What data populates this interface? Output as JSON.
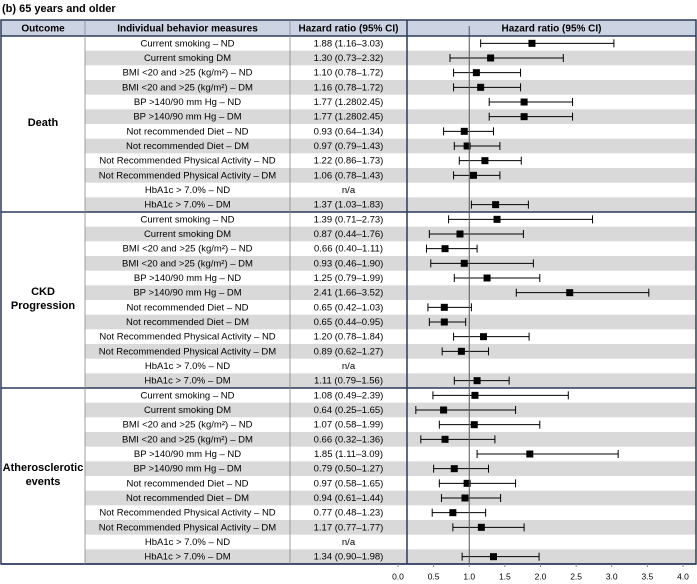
{
  "chart_data": {
    "type": "forest",
    "title": "(b) 65 years and older",
    "columns": [
      "Outcome",
      "Individual behavior measures",
      "Hazard ratio (95% CI)",
      "Hazard ratio (95% CI)"
    ],
    "xlim": [
      0,
      4
    ],
    "xticks": [
      {
        "value": 0,
        "label": "0.0"
      },
      0.5,
      {
        "value": 1,
        "label": "1.0"
      },
      1.5,
      {
        "value": 2,
        "label": "2.0"
      },
      2.5,
      {
        "value": 3,
        "label": "3.0"
      },
      3.5,
      {
        "value": 4,
        "label": "4.0"
      }
    ],
    "ref_line": 1,
    "color": "#000000",
    "groups": [
      {
        "name": "Death",
        "rows": [
          {
            "measure": "Current smoking – ND",
            "label": "1.88 (1.16–3.03)",
            "value": 1.88,
            "low": 1.16,
            "high": 3.03
          },
          {
            "measure": "Current smoking DM",
            "label": "1.30 (0.73–2.32)",
            "value": 1.3,
            "low": 0.73,
            "high": 2.32
          },
          {
            "measure": "BMI <20 and >25 (kg/m²) – ND",
            "label": "1.10 (0.78–1.72)",
            "value": 1.1,
            "low": 0.78,
            "high": 1.72
          },
          {
            "measure": "BMI <20 and >25 (kg/m²) – DM",
            "label": "1.16 (0.78–1.72)",
            "value": 1.16,
            "low": 0.78,
            "high": 1.72
          },
          {
            "measure": "BP >140/90 mm Hg – ND",
            "label": "1.77 (1.2802.45)",
            "value": 1.77,
            "low": 1.28,
            "high": 2.45
          },
          {
            "measure": "BP >140/90 mm Hg – DM",
            "label": "1.77 (1.2802.45)",
            "value": 1.77,
            "low": 1.28,
            "high": 2.45
          },
          {
            "measure": "Not recommended Diet – ND",
            "label": "0.93 (0.64–1.34)",
            "value": 0.93,
            "low": 0.64,
            "high": 1.34
          },
          {
            "measure": "Not recommended Diet – DM",
            "label": "0.97 (0.79–1.43)",
            "value": 0.97,
            "low": 0.79,
            "high": 1.43
          },
          {
            "measure": "Not Recommended Physical Activity – ND",
            "label": "1.22 (0.86–1.73)",
            "value": 1.22,
            "low": 0.86,
            "high": 1.73
          },
          {
            "measure": "Not Recommended Physical Activity – DM",
            "label": "1.06 (0.78–1.43)",
            "value": 1.06,
            "low": 0.78,
            "high": 1.43
          },
          {
            "measure": "HbA1c > 7.0% – ND",
            "label": "n/a",
            "value": null,
            "low": null,
            "high": null
          },
          {
            "measure": "HbA1c > 7.0% – DM",
            "label": "1.37 (1.03–1.83)",
            "value": 1.37,
            "low": 1.03,
            "high": 1.83
          }
        ]
      },
      {
        "name": "CKD Progression",
        "rows": [
          {
            "measure": "Current smoking – ND",
            "label": "1.39 (0.71–2.73)",
            "value": 1.39,
            "low": 0.71,
            "high": 2.73
          },
          {
            "measure": "Current smoking DM",
            "label": "0.87 (0.44–1.76)",
            "value": 0.87,
            "low": 0.44,
            "high": 1.76
          },
          {
            "measure": "BMI <20 and >25 (kg/m²) – ND",
            "label": "0.66 (0.40–1.11)",
            "value": 0.66,
            "low": 0.4,
            "high": 1.11
          },
          {
            "measure": "BMI <20 and >25 (kg/m²) – DM",
            "label": "0.93 (0.46–1.90)",
            "value": 0.93,
            "low": 0.46,
            "high": 1.9
          },
          {
            "measure": "BP >140/90 mm Hg – ND",
            "label": "1.25 (0.79–1.99)",
            "value": 1.25,
            "low": 0.79,
            "high": 1.99
          },
          {
            "measure": "BP >140/90 mm Hg – DM",
            "label": "2.41 (1.66–3.52)",
            "value": 2.41,
            "low": 1.66,
            "high": 3.52
          },
          {
            "measure": "Not recommended Diet – ND",
            "label": "0.65 (0.42–1.03)",
            "value": 0.65,
            "low": 0.42,
            "high": 1.03
          },
          {
            "measure": "Not recommended Diet – DM",
            "label": "0.65 (0.44–0.95)",
            "value": 0.65,
            "low": 0.44,
            "high": 0.95
          },
          {
            "measure": "Not Recommended Physical Activity – ND",
            "label": "1.20 (0.78–1.84)",
            "value": 1.2,
            "low": 0.78,
            "high": 1.84
          },
          {
            "measure": "Not Recommended Physical Activity – DM",
            "label": "0.89 (0.62–1.27)",
            "value": 0.89,
            "low": 0.62,
            "high": 1.27
          },
          {
            "measure": "HbA1c > 7.0% – ND",
            "label": "n/a",
            "value": null,
            "low": null,
            "high": null
          },
          {
            "measure": "HbA1c > 7.0% – DM",
            "label": "1.11 (0.79–1.56)",
            "value": 1.11,
            "low": 0.79,
            "high": 1.56
          }
        ]
      },
      {
        "name": "Atherosclerotic events",
        "rows": [
          {
            "measure": "Current smoking – ND",
            "label": "1.08 (0.49–2.39)",
            "value": 1.08,
            "low": 0.49,
            "high": 2.39
          },
          {
            "measure": "Current smoking DM",
            "label": "0.64 (0.25–1.65)",
            "value": 0.64,
            "low": 0.25,
            "high": 1.65
          },
          {
            "measure": "BMI <20 and >25 (kg/m²) – ND",
            "label": "1.07 (0.58–1.99)",
            "value": 1.07,
            "low": 0.58,
            "high": 1.99
          },
          {
            "measure": "BMI <20 and >25 (kg/m²) – DM",
            "label": "0.66 (0.32–1.36)",
            "value": 0.66,
            "low": 0.32,
            "high": 1.36
          },
          {
            "measure": "BP >140/90 mm Hg – ND",
            "label": "1.85 (1.11–3.09)",
            "value": 1.85,
            "low": 1.11,
            "high": 3.09
          },
          {
            "measure": "BP >140/90 mm Hg – DM",
            "label": "0.79 (0.50–1.27)",
            "value": 0.79,
            "low": 0.5,
            "high": 1.27
          },
          {
            "measure": "Not recommended Diet – ND",
            "label": "0.97 (0.58–1.65)",
            "value": 0.97,
            "low": 0.58,
            "high": 1.65
          },
          {
            "measure": "Not recommended Diet – DM",
            "label": "0.94 (0.61–1.44)",
            "value": 0.94,
            "low": 0.61,
            "high": 1.44
          },
          {
            "measure": "Not Recommended Physical Activity – ND",
            "label": "0.77 (0.48–1.23)",
            "value": 0.77,
            "low": 0.48,
            "high": 1.23
          },
          {
            "measure": "Not Recommended Physical Activity – DM",
            "label": "1.17 (0.77–1.77)",
            "value": 1.17,
            "low": 0.77,
            "high": 1.77
          },
          {
            "measure": "HbA1c > 7.0% – ND",
            "label": "n/a",
            "value": null,
            "low": null,
            "high": null
          },
          {
            "measure": "HbA1c > 7.0% – DM",
            "label": "1.34 (0.90–1.98)",
            "value": 1.34,
            "low": 0.9,
            "high": 1.98
          }
        ]
      }
    ]
  }
}
